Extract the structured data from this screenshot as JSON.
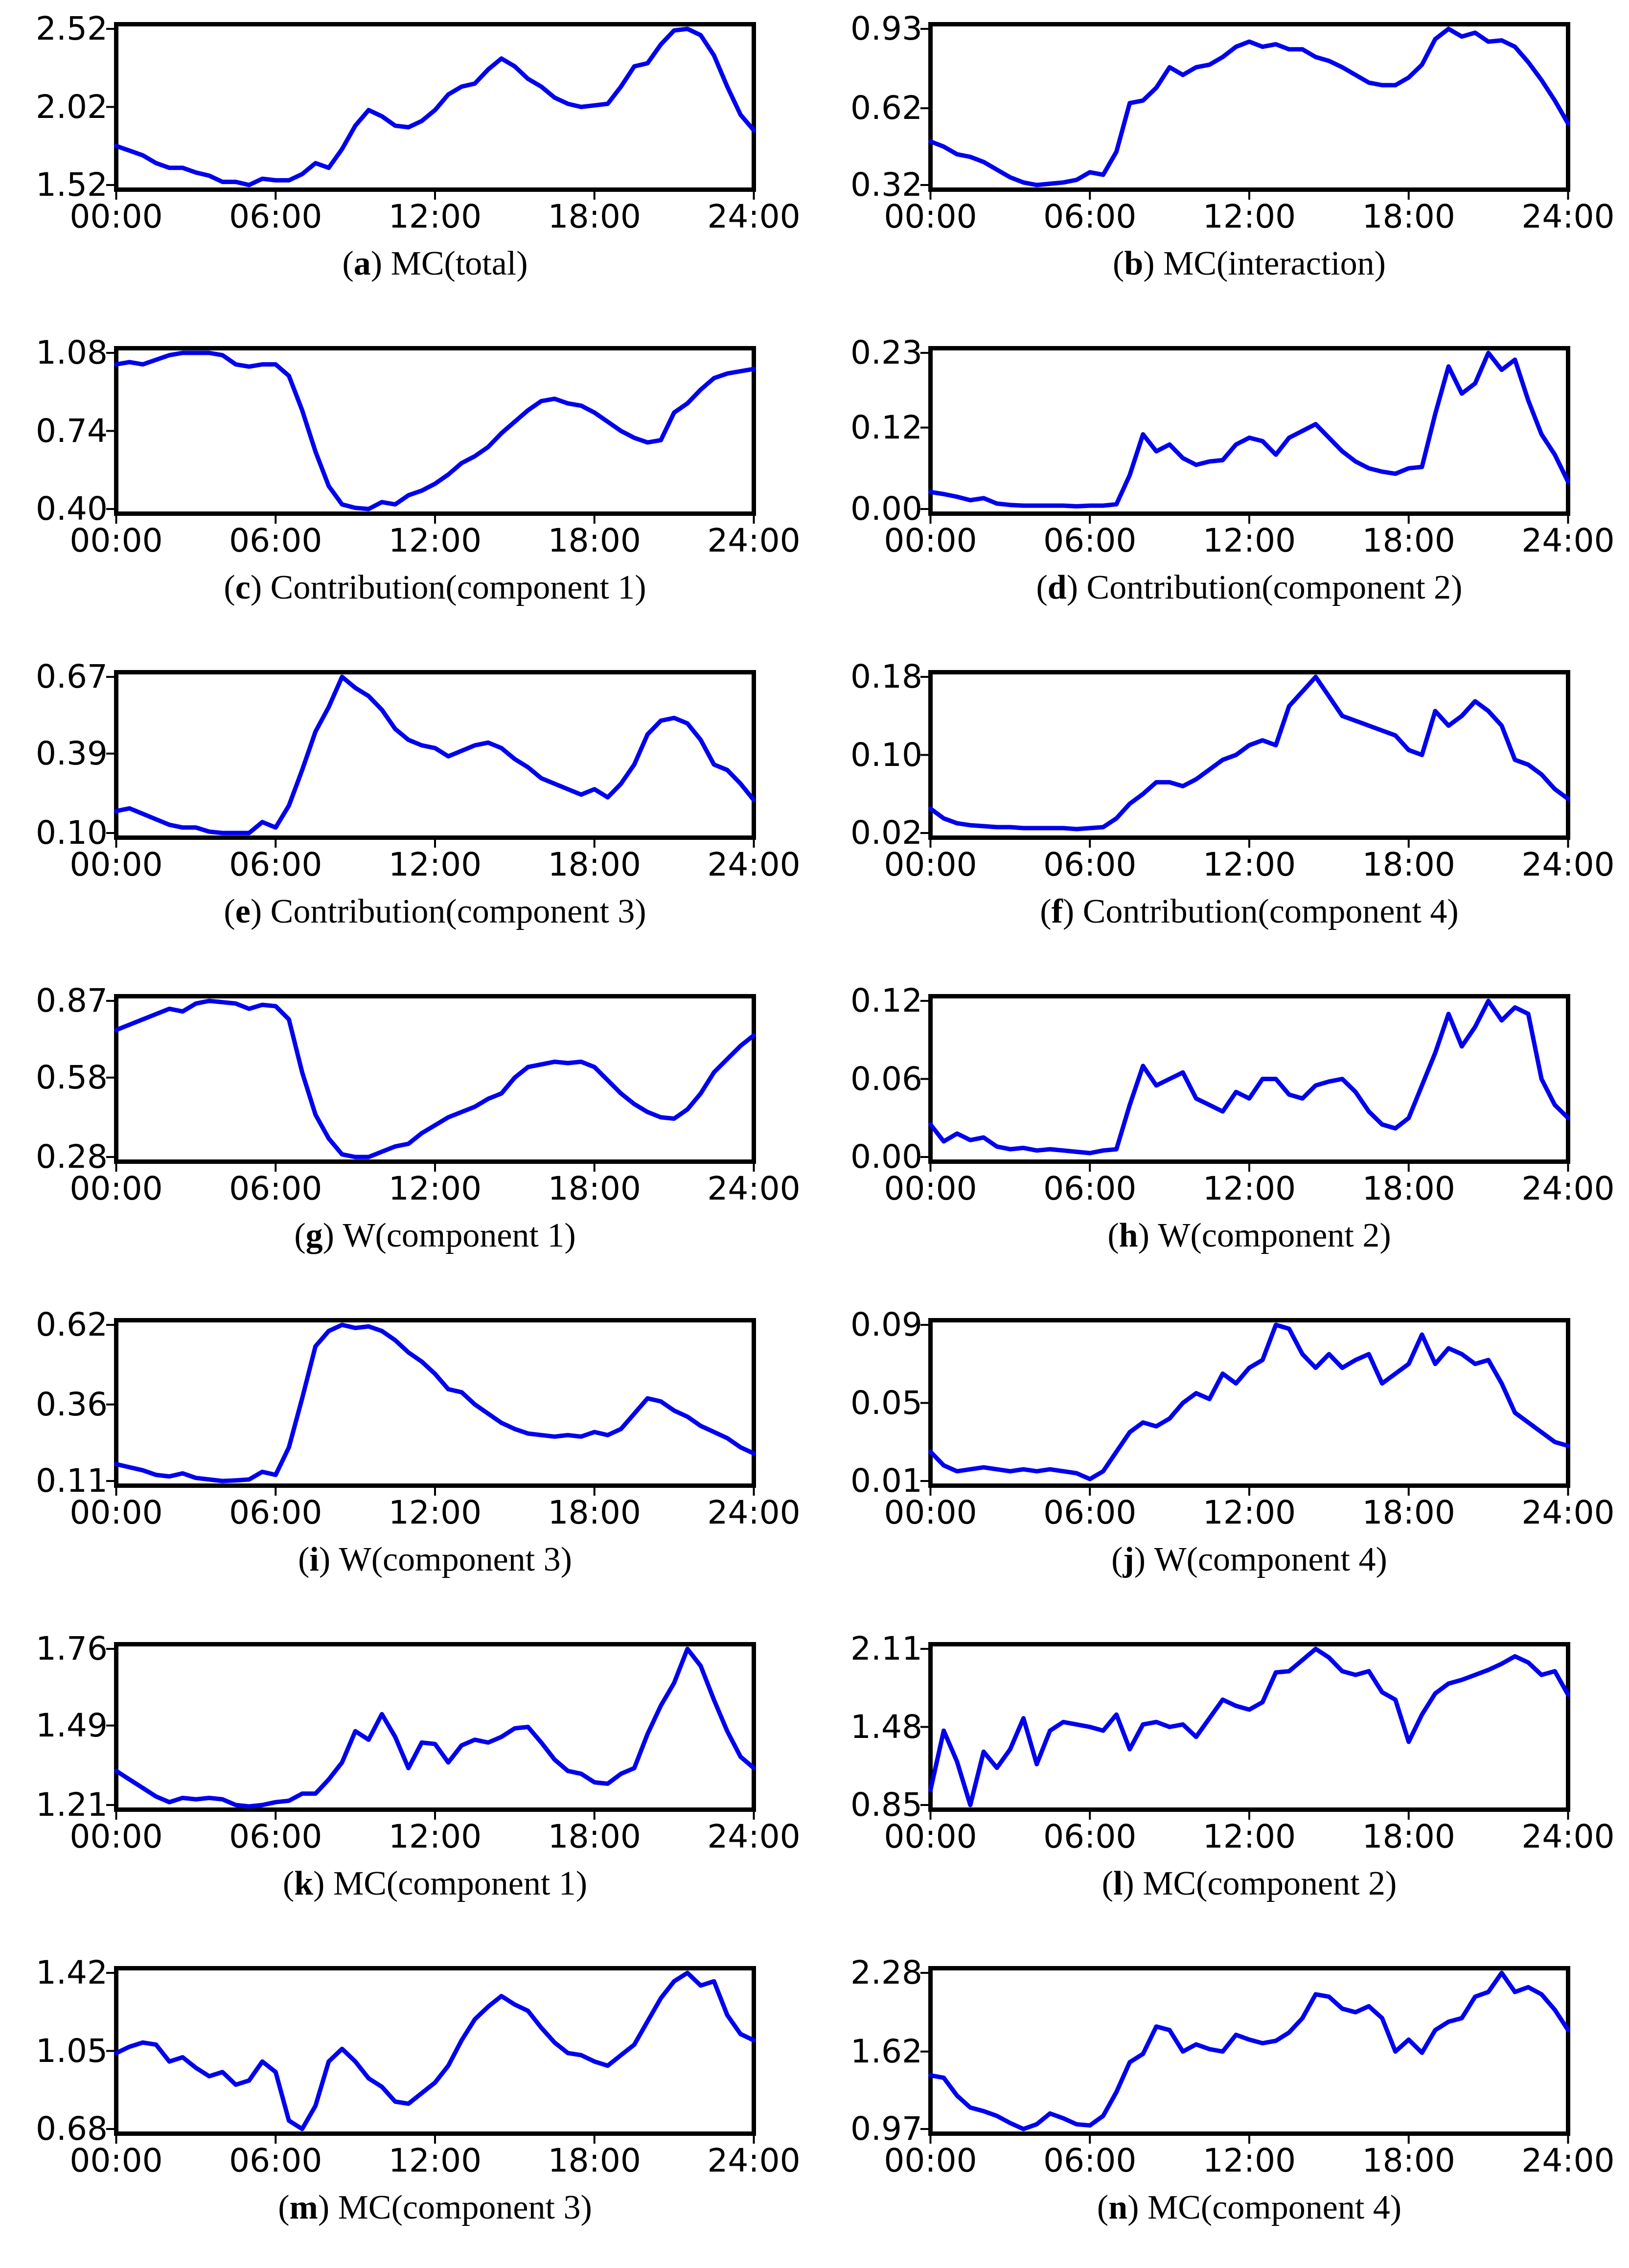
{
  "figure": {
    "background": "#ffffff",
    "line_color": "#0000ee",
    "frame_color": "#000000",
    "columns": 2,
    "rows": 7
  },
  "x_axis": {
    "tick_labels": [
      "00:00",
      "06:00",
      "12:00",
      "18:00",
      "24:00"
    ],
    "tick_hours": [
      0,
      6,
      12,
      18,
      24
    ],
    "start_hour": 0,
    "end_hour": 24,
    "step_hours": 0.5
  },
  "chart_data": [
    {
      "letter": "a",
      "title": "MC(total)",
      "type": "line",
      "legend": null,
      "grid": false,
      "ylim": [
        1.52,
        2.52
      ],
      "y_ticks": [
        1.52,
        2.02,
        2.52
      ],
      "y_tick_labels": [
        "1.52",
        "2.02",
        "2.52"
      ],
      "values": [
        1.77,
        1.74,
        1.71,
        1.66,
        1.63,
        1.63,
        1.6,
        1.58,
        1.54,
        1.54,
        1.52,
        1.56,
        1.55,
        1.55,
        1.59,
        1.66,
        1.63,
        1.75,
        1.9,
        2.0,
        1.96,
        1.9,
        1.89,
        1.93,
        2.0,
        2.1,
        2.15,
        2.17,
        2.26,
        2.33,
        2.28,
        2.2,
        2.15,
        2.08,
        2.04,
        2.02,
        2.03,
        2.04,
        2.15,
        2.28,
        2.3,
        2.42,
        2.51,
        2.52,
        2.48,
        2.35,
        2.15,
        1.97,
        1.87
      ]
    },
    {
      "letter": "b",
      "title": "MC(interaction)",
      "type": "line",
      "legend": null,
      "grid": false,
      "ylim": [
        0.32,
        0.93
      ],
      "y_ticks": [
        0.32,
        0.62,
        0.93
      ],
      "y_tick_labels": [
        "0.32",
        "0.62",
        "0.93"
      ],
      "values": [
        0.49,
        0.47,
        0.44,
        0.43,
        0.41,
        0.38,
        0.35,
        0.33,
        0.32,
        0.325,
        0.33,
        0.34,
        0.37,
        0.36,
        0.45,
        0.64,
        0.65,
        0.7,
        0.78,
        0.75,
        0.78,
        0.79,
        0.82,
        0.86,
        0.88,
        0.86,
        0.87,
        0.85,
        0.85,
        0.82,
        0.805,
        0.78,
        0.75,
        0.72,
        0.71,
        0.71,
        0.74,
        0.79,
        0.89,
        0.93,
        0.9,
        0.915,
        0.88,
        0.885,
        0.86,
        0.8,
        0.73,
        0.65,
        0.56
      ]
    },
    {
      "letter": "c",
      "title": "Contribution(component 1)",
      "type": "line",
      "legend": null,
      "grid": false,
      "ylim": [
        0.4,
        1.08
      ],
      "y_ticks": [
        0.4,
        0.74,
        1.08
      ],
      "y_tick_labels": [
        "0.40",
        "0.74",
        "1.08"
      ],
      "values": [
        1.03,
        1.04,
        1.03,
        1.05,
        1.07,
        1.08,
        1.08,
        1.08,
        1.07,
        1.03,
        1.02,
        1.03,
        1.03,
        0.98,
        0.83,
        0.65,
        0.5,
        0.42,
        0.405,
        0.4,
        0.43,
        0.42,
        0.46,
        0.48,
        0.51,
        0.55,
        0.6,
        0.63,
        0.67,
        0.73,
        0.78,
        0.83,
        0.87,
        0.88,
        0.86,
        0.85,
        0.82,
        0.78,
        0.74,
        0.71,
        0.69,
        0.7,
        0.82,
        0.86,
        0.92,
        0.97,
        0.99,
        1.0,
        1.01
      ]
    },
    {
      "letter": "d",
      "title": "Contribution(component 2)",
      "type": "line",
      "legend": null,
      "grid": false,
      "ylim": [
        0.0,
        0.23
      ],
      "y_ticks": [
        0.0,
        0.12,
        0.23
      ],
      "y_tick_labels": [
        "0.00",
        "0.12",
        "0.23"
      ],
      "values": [
        0.025,
        0.022,
        0.018,
        0.013,
        0.016,
        0.008,
        0.006,
        0.005,
        0.005,
        0.005,
        0.005,
        0.004,
        0.005,
        0.005,
        0.007,
        0.05,
        0.11,
        0.085,
        0.095,
        0.075,
        0.065,
        0.07,
        0.072,
        0.095,
        0.105,
        0.1,
        0.08,
        0.105,
        0.115,
        0.125,
        0.105,
        0.085,
        0.07,
        0.06,
        0.055,
        0.052,
        0.06,
        0.062,
        0.14,
        0.21,
        0.17,
        0.185,
        0.23,
        0.205,
        0.22,
        0.16,
        0.11,
        0.08,
        0.04
      ]
    },
    {
      "letter": "e",
      "title": "Contribution(component 3)",
      "type": "line",
      "legend": null,
      "grid": false,
      "ylim": [
        0.1,
        0.67
      ],
      "y_ticks": [
        0.1,
        0.39,
        0.67
      ],
      "y_tick_labels": [
        "0.10",
        "0.39",
        "0.67"
      ],
      "values": [
        0.18,
        0.19,
        0.17,
        0.15,
        0.13,
        0.12,
        0.12,
        0.105,
        0.1,
        0.1,
        0.1,
        0.14,
        0.12,
        0.2,
        0.33,
        0.47,
        0.56,
        0.67,
        0.63,
        0.6,
        0.55,
        0.48,
        0.44,
        0.42,
        0.41,
        0.38,
        0.4,
        0.42,
        0.43,
        0.41,
        0.37,
        0.34,
        0.3,
        0.28,
        0.26,
        0.24,
        0.26,
        0.23,
        0.28,
        0.35,
        0.46,
        0.51,
        0.52,
        0.5,
        0.44,
        0.35,
        0.33,
        0.28,
        0.22
      ]
    },
    {
      "letter": "f",
      "title": "Contribution(component 4)",
      "type": "line",
      "legend": null,
      "grid": false,
      "ylim": [
        0.02,
        0.18
      ],
      "y_ticks": [
        0.02,
        0.1,
        0.18
      ],
      "y_tick_labels": [
        "0.02",
        "0.10",
        "0.18"
      ],
      "values": [
        0.045,
        0.035,
        0.03,
        0.028,
        0.027,
        0.026,
        0.026,
        0.025,
        0.025,
        0.025,
        0.025,
        0.024,
        0.025,
        0.026,
        0.035,
        0.05,
        0.06,
        0.072,
        0.072,
        0.068,
        0.075,
        0.085,
        0.095,
        0.1,
        0.11,
        0.115,
        0.11,
        0.15,
        0.165,
        0.18,
        0.16,
        0.14,
        0.135,
        0.13,
        0.125,
        0.12,
        0.105,
        0.1,
        0.145,
        0.13,
        0.14,
        0.155,
        0.145,
        0.13,
        0.095,
        0.09,
        0.08,
        0.065,
        0.055
      ]
    },
    {
      "letter": "g",
      "title": "W(component 1)",
      "type": "line",
      "legend": null,
      "grid": false,
      "ylim": [
        0.28,
        0.87
      ],
      "y_ticks": [
        0.28,
        0.58,
        0.87
      ],
      "y_tick_labels": [
        "0.28",
        "0.58",
        "0.87"
      ],
      "values": [
        0.76,
        0.78,
        0.8,
        0.82,
        0.84,
        0.83,
        0.86,
        0.87,
        0.865,
        0.86,
        0.84,
        0.855,
        0.85,
        0.8,
        0.6,
        0.44,
        0.35,
        0.29,
        0.28,
        0.28,
        0.3,
        0.32,
        0.33,
        0.37,
        0.4,
        0.43,
        0.45,
        0.47,
        0.5,
        0.52,
        0.58,
        0.62,
        0.63,
        0.64,
        0.635,
        0.64,
        0.62,
        0.57,
        0.52,
        0.48,
        0.45,
        0.43,
        0.425,
        0.46,
        0.52,
        0.6,
        0.65,
        0.7,
        0.74
      ]
    },
    {
      "letter": "h",
      "title": "W(component 2)",
      "type": "line",
      "legend": null,
      "grid": false,
      "ylim": [
        0.0,
        0.12
      ],
      "y_ticks": [
        0.0,
        0.06,
        0.12
      ],
      "y_tick_labels": [
        "0.00",
        "0.06",
        "0.12"
      ],
      "values": [
        0.025,
        0.012,
        0.018,
        0.013,
        0.015,
        0.008,
        0.006,
        0.007,
        0.005,
        0.006,
        0.005,
        0.004,
        0.003,
        0.005,
        0.006,
        0.04,
        0.07,
        0.055,
        0.06,
        0.065,
        0.045,
        0.04,
        0.035,
        0.05,
        0.045,
        0.06,
        0.06,
        0.048,
        0.045,
        0.055,
        0.058,
        0.06,
        0.05,
        0.035,
        0.025,
        0.022,
        0.03,
        0.055,
        0.08,
        0.11,
        0.085,
        0.1,
        0.12,
        0.105,
        0.115,
        0.11,
        0.06,
        0.04,
        0.03
      ]
    },
    {
      "letter": "i",
      "title": "W(component 3)",
      "type": "line",
      "legend": null,
      "grid": false,
      "ylim": [
        0.11,
        0.62
      ],
      "y_ticks": [
        0.11,
        0.36,
        0.62
      ],
      "y_tick_labels": [
        "0.11",
        "0.36",
        "0.62"
      ],
      "values": [
        0.165,
        0.155,
        0.145,
        0.13,
        0.125,
        0.135,
        0.12,
        0.115,
        0.11,
        0.112,
        0.115,
        0.14,
        0.13,
        0.22,
        0.38,
        0.55,
        0.6,
        0.62,
        0.61,
        0.615,
        0.6,
        0.57,
        0.53,
        0.5,
        0.46,
        0.41,
        0.4,
        0.36,
        0.33,
        0.3,
        0.28,
        0.265,
        0.26,
        0.255,
        0.26,
        0.255,
        0.27,
        0.26,
        0.28,
        0.33,
        0.38,
        0.37,
        0.34,
        0.32,
        0.29,
        0.27,
        0.25,
        0.22,
        0.2
      ]
    },
    {
      "letter": "j",
      "title": "W(component 4)",
      "type": "line",
      "legend": null,
      "grid": false,
      "ylim": [
        0.01,
        0.09
      ],
      "y_ticks": [
        0.01,
        0.05,
        0.09
      ],
      "y_tick_labels": [
        "0.01",
        "0.05",
        "0.09"
      ],
      "values": [
        0.025,
        0.018,
        0.015,
        0.016,
        0.017,
        0.016,
        0.015,
        0.016,
        0.015,
        0.016,
        0.015,
        0.014,
        0.011,
        0.015,
        0.025,
        0.035,
        0.04,
        0.038,
        0.042,
        0.05,
        0.055,
        0.052,
        0.065,
        0.06,
        0.068,
        0.072,
        0.09,
        0.088,
        0.075,
        0.068,
        0.075,
        0.068,
        0.072,
        0.075,
        0.06,
        0.065,
        0.07,
        0.085,
        0.07,
        0.078,
        0.075,
        0.07,
        0.072,
        0.06,
        0.045,
        0.04,
        0.035,
        0.03,
        0.028
      ]
    },
    {
      "letter": "k",
      "title": "MC(component 1)",
      "type": "line",
      "legend": null,
      "grid": false,
      "ylim": [
        1.21,
        1.76
      ],
      "y_ticks": [
        1.21,
        1.49,
        1.76
      ],
      "y_tick_labels": [
        "1.21",
        "1.49",
        "1.76"
      ],
      "values": [
        1.33,
        1.3,
        1.27,
        1.24,
        1.22,
        1.235,
        1.23,
        1.235,
        1.23,
        1.21,
        1.205,
        1.21,
        1.22,
        1.225,
        1.25,
        1.25,
        1.3,
        1.36,
        1.47,
        1.44,
        1.53,
        1.45,
        1.34,
        1.43,
        1.425,
        1.36,
        1.42,
        1.44,
        1.43,
        1.45,
        1.48,
        1.485,
        1.43,
        1.37,
        1.33,
        1.32,
        1.29,
        1.285,
        1.32,
        1.34,
        1.46,
        1.56,
        1.64,
        1.76,
        1.7,
        1.58,
        1.47,
        1.38,
        1.34
      ]
    },
    {
      "letter": "l",
      "title": "MC(component 2)",
      "type": "line",
      "legend": null,
      "grid": false,
      "ylim": [
        0.85,
        2.11
      ],
      "y_ticks": [
        0.85,
        1.48,
        2.11
      ],
      "y_tick_labels": [
        "0.85",
        "1.48",
        "2.11"
      ],
      "values": [
        0.97,
        1.45,
        1.2,
        0.85,
        1.28,
        1.15,
        1.3,
        1.55,
        1.18,
        1.45,
        1.52,
        1.5,
        1.48,
        1.45,
        1.58,
        1.3,
        1.5,
        1.52,
        1.48,
        1.5,
        1.4,
        1.55,
        1.7,
        1.65,
        1.62,
        1.68,
        1.92,
        1.93,
        2.02,
        2.11,
        2.04,
        1.93,
        1.9,
        1.93,
        1.76,
        1.7,
        1.36,
        1.58,
        1.75,
        1.83,
        1.86,
        1.9,
        1.94,
        1.99,
        2.05,
        2.0,
        1.9,
        1.93,
        1.74
      ]
    },
    {
      "letter": "m",
      "title": "MC(component 3)",
      "type": "line",
      "legend": null,
      "grid": false,
      "ylim": [
        0.68,
        1.42
      ],
      "y_ticks": [
        0.68,
        1.05,
        1.42
      ],
      "y_tick_labels": [
        "0.68",
        "1.05",
        "1.42"
      ],
      "values": [
        1.04,
        1.07,
        1.09,
        1.08,
        1.0,
        1.02,
        0.97,
        0.93,
        0.95,
        0.89,
        0.91,
        1.0,
        0.95,
        0.72,
        0.68,
        0.79,
        1.0,
        1.06,
        1.0,
        0.92,
        0.88,
        0.81,
        0.8,
        0.85,
        0.9,
        0.98,
        1.1,
        1.2,
        1.26,
        1.31,
        1.27,
        1.24,
        1.16,
        1.09,
        1.04,
        1.03,
        1.0,
        0.98,
        1.03,
        1.08,
        1.19,
        1.3,
        1.38,
        1.42,
        1.36,
        1.38,
        1.22,
        1.13,
        1.1
      ]
    },
    {
      "letter": "n",
      "title": "MC(component 4)",
      "type": "line",
      "legend": null,
      "grid": false,
      "ylim": [
        0.97,
        2.28
      ],
      "y_ticks": [
        0.97,
        1.62,
        2.28
      ],
      "y_tick_labels": [
        "0.97",
        "1.62",
        "2.28"
      ],
      "values": [
        1.42,
        1.4,
        1.25,
        1.15,
        1.12,
        1.08,
        1.02,
        0.97,
        1.01,
        1.1,
        1.06,
        1.01,
        1.0,
        1.08,
        1.28,
        1.53,
        1.6,
        1.83,
        1.8,
        1.62,
        1.68,
        1.64,
        1.62,
        1.76,
        1.72,
        1.69,
        1.71,
        1.78,
        1.9,
        2.1,
        2.08,
        1.98,
        1.95,
        2.0,
        1.9,
        1.62,
        1.72,
        1.61,
        1.8,
        1.87,
        1.9,
        2.08,
        2.12,
        2.28,
        2.12,
        2.16,
        2.1,
        1.97,
        1.8
      ]
    }
  ]
}
